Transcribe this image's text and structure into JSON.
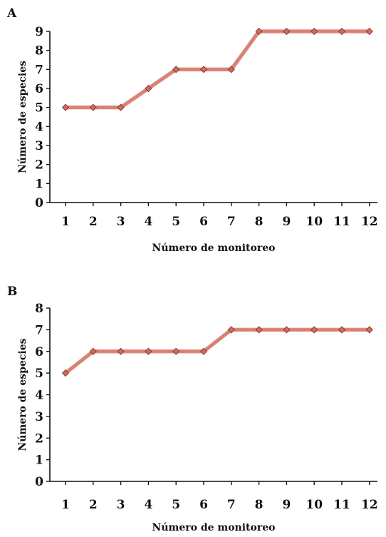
{
  "chart_data": [
    {
      "type": "line",
      "panel_label": "A",
      "xlabel": "Número de monitoreo",
      "ylabel": "Número de especies",
      "x": [
        1,
        2,
        3,
        4,
        5,
        6,
        7,
        8,
        9,
        10,
        11,
        12
      ],
      "ylim": [
        0,
        9
      ],
      "yticks": [
        0,
        1,
        2,
        3,
        4,
        5,
        6,
        7,
        8,
        9
      ],
      "series": [
        {
          "values": [
            5,
            5,
            5,
            6,
            7,
            7,
            7,
            9,
            9,
            9,
            9,
            9
          ]
        }
      ],
      "grid": false,
      "colors": {
        "line": "#e07e6e",
        "marker": "#d06a5c"
      }
    },
    {
      "type": "line",
      "panel_label": "B",
      "xlabel": "Número de monitoreo",
      "ylabel": "Número de especies",
      "x": [
        1,
        2,
        3,
        4,
        5,
        6,
        7,
        8,
        9,
        10,
        11,
        12
      ],
      "ylim": [
        0,
        8
      ],
      "yticks": [
        0,
        1,
        2,
        3,
        4,
        5,
        6,
        7,
        8
      ],
      "series": [
        {
          "values": [
            5,
            6,
            6,
            6,
            6,
            6,
            7,
            7,
            7,
            7,
            7,
            7
          ]
        }
      ],
      "grid": false,
      "colors": {
        "line": "#e07e6e",
        "marker": "#d06a5c"
      }
    }
  ]
}
